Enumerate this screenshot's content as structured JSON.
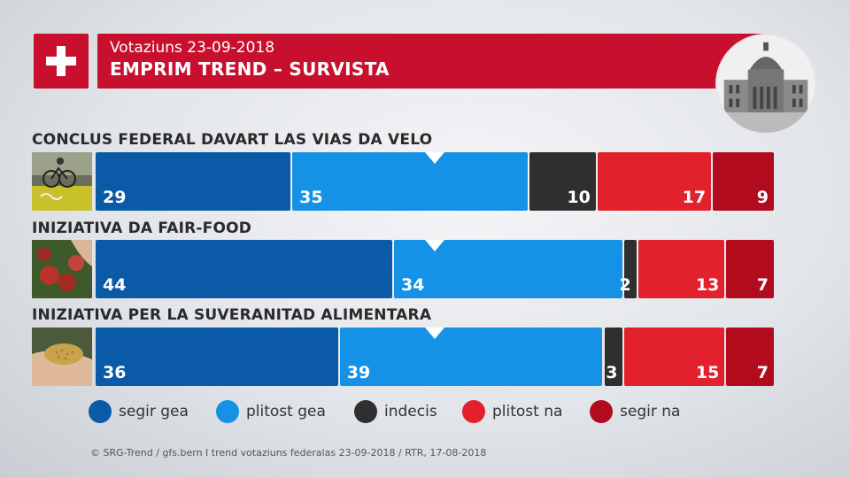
{
  "header": {
    "subtitle": "Votaziuns 23-09-2018",
    "title": "EMPRIM TREND – SURVISTA"
  },
  "colors": {
    "segir_gea": "#0a5aa8",
    "plitost_gea": "#1592e6",
    "indecis": "#2f2f2f",
    "plitost_na": "#e3212d",
    "segir_na": "#b30b1e",
    "header_red": "#c8102e"
  },
  "icons": {
    "flag": "swiss-flag-icon",
    "building": "federal-palace-icon",
    "thumb1": "bicycle-photo",
    "thumb2": "apples-photo",
    "thumb3": "grain-photo"
  },
  "chart_data": {
    "type": "bar",
    "orientation": "horizontal-stacked-100",
    "categories": [
      "CONCLUS FEDERAL DAVART LAS VIAS DA VELO",
      "INIZIATIVA DA FAIR-FOOD",
      "INIZIATIVA PER LA SUVERANITAD ALIMENTARA"
    ],
    "series": [
      {
        "name": "segir gea",
        "values": [
          29,
          44,
          36
        ]
      },
      {
        "name": "plitost gea",
        "values": [
          35,
          34,
          39
        ]
      },
      {
        "name": "indecis",
        "values": [
          10,
          2,
          3
        ]
      },
      {
        "name": "plitost na",
        "values": [
          17,
          13,
          15
        ]
      },
      {
        "name": "segir na",
        "values": [
          9,
          7,
          7
        ]
      }
    ],
    "xlim": [
      0,
      100
    ],
    "midpoint_marker": 50,
    "legend_position": "bottom",
    "grid": false
  },
  "legend": [
    {
      "label": "segir gea"
    },
    {
      "label": "plitost gea"
    },
    {
      "label": "indecis"
    },
    {
      "label": "plitost na"
    },
    {
      "label": "segir na"
    }
  ],
  "source": "© SRG-Trend / gfs.bern  I  trend votaziuns federalas 23-09-2018 / RTR, 17-08-2018"
}
